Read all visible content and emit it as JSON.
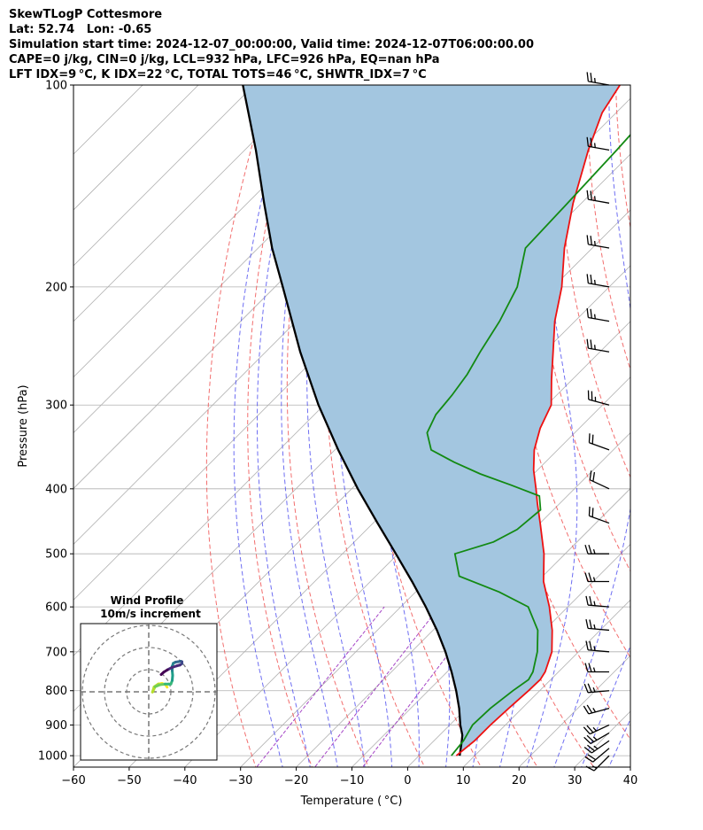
{
  "header": {
    "line1": "SkewTLogP Cottesmore",
    "line2": "Lat: 52.74   Lon: -0.65",
    "line3": "Simulation start time: 2024-12-07_00:00:00, Valid time: 2024-12-07T06:00:00.00",
    "line4": "CAPE=0 j/kg, CIN=0 j/kg, LCL=932 hPa, LFC=926 hPa, EQ=nan hPa",
    "line5": "LFT IDX=9 °C, K IDX=22 °C, TOTAL TOTS=46 °C, SHWTR_IDX=7 °C"
  },
  "colors": {
    "temperature": "#ee1111",
    "dewpoint": "#138a13",
    "parcel": "#000000",
    "shading": "#a3c6e0",
    "dry_adiabat": "#ef4a4a",
    "moist_adiabat": "#4a4aef",
    "mixing_ratio": "#9b30c0",
    "isotherm_grid": "#b0b0b0"
  },
  "chart_data": {
    "type": "line",
    "xlabel": "Temperature ( °C)",
    "ylabel": "Pressure (hPa)",
    "xlim": [
      -60,
      40
    ],
    "ylim": [
      1040,
      100
    ],
    "y_scale": "log",
    "x_ticks": [
      -60,
      -50,
      -40,
      -30,
      -20,
      -10,
      0,
      10,
      20,
      30,
      40
    ],
    "x_tick_labels": [
      "−60",
      "−50",
      "−40",
      "−30",
      "−20",
      "−10",
      "0",
      "10",
      "20",
      "30",
      "40"
    ],
    "y_ticks": [
      1000,
      900,
      800,
      700,
      600,
      500,
      400,
      300,
      200,
      100
    ],
    "y_tick_labels": [
      "1000",
      "900",
      "800",
      "700",
      "600",
      "500",
      "400",
      "300",
      "200",
      "100"
    ],
    "grid": true,
    "series": [
      {
        "key": "temperature",
        "pressure": [
          1000,
          950,
          900,
          850,
          800,
          770,
          750,
          700,
          650,
          600,
          550,
          500,
          450,
          420,
          400,
          375,
          350,
          325,
          300,
          275,
          250,
          225,
          200,
          175,
          150,
          125,
          110,
          100
        ],
        "values": [
          6.7,
          7.3,
          7.3,
          7.6,
          8.0,
          8.1,
          7.6,
          5.2,
          1.4,
          -3.3,
          -8.9,
          -13.8,
          -20.0,
          -24.1,
          -26.9,
          -30.7,
          -34.2,
          -37.0,
          -39.2,
          -43.7,
          -48.4,
          -53.6,
          -58.5,
          -65.0,
          -71.5,
          -78.3,
          -82.5,
          -84.3
        ]
      },
      {
        "key": "dewpoint",
        "pressure": [
          1000,
          950,
          900,
          850,
          800,
          770,
          750,
          700,
          650,
          600,
          570,
          540,
          500,
          480,
          460,
          430,
          410,
          395,
          380,
          365,
          350,
          330,
          310,
          290,
          270,
          250,
          225,
          200,
          175,
          150,
          125,
          100
        ],
        "values": [
          5.8,
          5.3,
          4.1,
          4.3,
          5.2,
          6.0,
          5.4,
          2.6,
          -1.2,
          -7.1,
          -15.0,
          -25.0,
          -29.8,
          -25.0,
          -23.0,
          -22.3,
          -25.0,
          -32.0,
          -39.6,
          -46.4,
          -52.7,
          -56.5,
          -58.2,
          -58.8,
          -59.8,
          -61.5,
          -63.5,
          -66.5,
          -72.0,
          -72.5,
          -73.2,
          -74.4
        ]
      },
      {
        "key": "parcel",
        "pressure": [
          1000,
          950,
          932,
          900,
          850,
          800,
          750,
          700,
          650,
          600,
          550,
          500,
          450,
          400,
          350,
          300,
          250,
          200,
          175,
          150,
          125,
          100
        ],
        "values": [
          7.3,
          5.0,
          4.1,
          1.9,
          -1.3,
          -5.0,
          -9.2,
          -13.9,
          -19.3,
          -25.5,
          -32.5,
          -40.4,
          -49.2,
          -58.9,
          -69.4,
          -81.0,
          -93.8,
          -108.6,
          -117.5,
          -127.0,
          -138.0,
          -152.0
        ]
      }
    ],
    "wind_barbs": {
      "pressure": [
        1000,
        975,
        950,
        925,
        900,
        850,
        800,
        750,
        700,
        650,
        600,
        550,
        500,
        450,
        400,
        350,
        300,
        250,
        225,
        200,
        175,
        150,
        125,
        100
      ],
      "speed_kt": [
        15,
        20,
        25,
        25,
        25,
        25,
        25,
        25,
        25,
        25,
        25,
        25,
        25,
        20,
        20,
        20,
        25,
        25,
        25,
        25,
        25,
        25,
        25,
        25
      ],
      "direction_deg": [
        225,
        230,
        235,
        240,
        245,
        255,
        265,
        270,
        275,
        275,
        275,
        270,
        270,
        290,
        295,
        290,
        285,
        280,
        280,
        280,
        280,
        280,
        280,
        280
      ]
    }
  },
  "hodograph": {
    "title": "Wind Profile",
    "subtitle": "10m/s increment",
    "ring_speeds": [
      10,
      20,
      30
    ],
    "trace_u": [
      8.3,
      7.6,
      6.0,
      4.3,
      2.4,
      1.7,
      2.9,
      5.1,
      7.4,
      9.0,
      10.0,
      10.6,
      10.8,
      10.6,
      10.6,
      11.1,
      12.1,
      13.4,
      14.5,
      15.0,
      15.0,
      14.1,
      12.6,
      10.3,
      8.4,
      6.8,
      5.6
    ],
    "trace_v": [
      2.1,
      3.2,
      3.8,
      3.5,
      2.2,
      -0.1,
      2.3,
      3.2,
      3.5,
      3.5,
      3.5,
      5.1,
      7.4,
      9.6,
      11.5,
      12.9,
      13.4,
      13.6,
      13.8,
      13.6,
      12.7,
      12.1,
      11.7,
      10.9,
      9.9,
      8.9,
      7.8
    ]
  }
}
